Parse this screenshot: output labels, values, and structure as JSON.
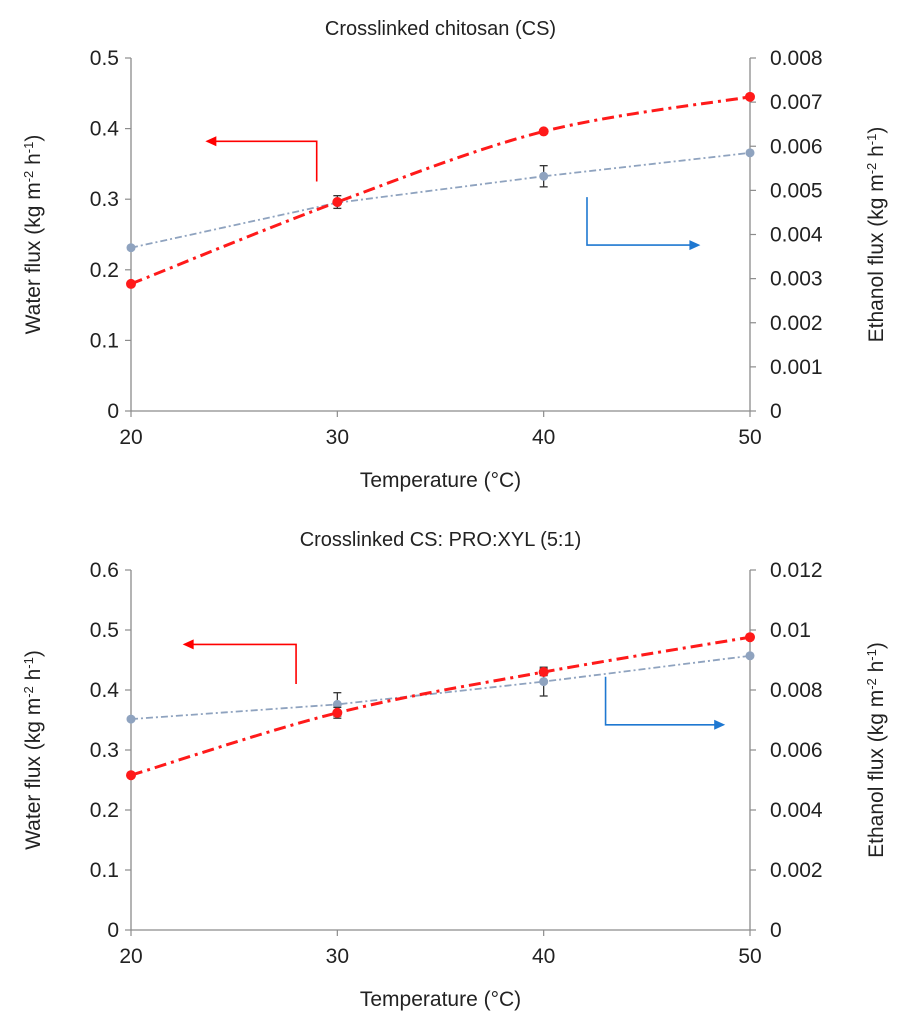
{
  "chart_data": [
    {
      "type": "line",
      "title": "Crosslinked chitosan (CS)",
      "xlabel": "Temperature (°C)",
      "ylabel_left": {
        "main": "Water  flux (kg m",
        "sup1": "-2",
        "mid": " h",
        "sup2": "-1",
        "end": ")"
      },
      "ylabel_right": {
        "main": "Ethanol flux (kg m",
        "sup1": "-2",
        "mid": " h",
        "sup2": "-1",
        "end": ")"
      },
      "x_ticks": [
        "20",
        "30",
        "40",
        "50"
      ],
      "y_left_ticks": [
        "0",
        "0.1",
        "0.2",
        "0.3",
        "0.4",
        "0.5"
      ],
      "y_right_ticks": [
        "0",
        "0.001",
        "0.002",
        "0.003",
        "0.004",
        "0.005",
        "0.006",
        "0.007",
        "0.008"
      ],
      "xlim": [
        20,
        50
      ],
      "ylim_left": [
        0,
        0.5
      ],
      "ylim_right": [
        0,
        0.008
      ],
      "grid": false,
      "legend": "none",
      "series": [
        {
          "axis": "left",
          "color": "#ff1a1a",
          "style": "dash-dot",
          "x": [
            20,
            30,
            40,
            50
          ],
          "y": [
            0.18,
            0.296,
            0.396,
            0.445
          ],
          "err": [
            0,
            0.009,
            0,
            0
          ]
        },
        {
          "axis": "right",
          "color": "#8fa3bf",
          "style": "dash-dot-thin",
          "x": [
            20,
            30,
            40,
            50
          ],
          "y": [
            0.0037,
            0.00472,
            0.00532,
            0.00585
          ],
          "err": [
            0,
            0,
            0.00024,
            0
          ]
        }
      ],
      "arrows": [
        {
          "color": "#ff0000",
          "direction": "left",
          "x_from": 29,
          "y_from_left": 0.325,
          "x_corner": 29,
          "y_corner_left": 0.382,
          "x_to": 23.7
        },
        {
          "color": "#1f78d1",
          "direction": "right",
          "x_from": 42.1,
          "y_from_left": 0.303,
          "x_corner": 42.1,
          "y_corner_left": 0.235,
          "x_to": 47.5
        }
      ]
    },
    {
      "type": "line",
      "title": "Crosslinked CS: PRO:XYL (5:1)",
      "xlabel": "Temperature (°C)",
      "ylabel_left": {
        "main": "Water flux  (kg m",
        "sup1": "-2",
        "mid": " h",
        "sup2": "-1",
        "end": ")"
      },
      "ylabel_right": {
        "main": "Ethanol flux (kg m",
        "sup1": "-2",
        "mid": " h",
        "sup2": "-1",
        "end": ")"
      },
      "x_ticks": [
        "20",
        "30",
        "40",
        "50"
      ],
      "y_left_ticks": [
        "0",
        "0.1",
        "0.2",
        "0.3",
        "0.4",
        "0.5",
        "0.6"
      ],
      "y_right_ticks": [
        "0",
        "0.002",
        "0.004",
        "0.006",
        "0.008",
        "0.01",
        "0.012"
      ],
      "xlim": [
        20,
        50
      ],
      "ylim_left": [
        0,
        0.6
      ],
      "ylim_right": [
        0,
        0.012
      ],
      "grid": false,
      "legend": "none",
      "series": [
        {
          "axis": "left",
          "color": "#ff1a1a",
          "style": "dash-dot",
          "x": [
            20,
            30,
            40,
            50
          ],
          "y": [
            0.258,
            0.362,
            0.43,
            0.488
          ],
          "err": [
            0,
            0.009,
            0.006,
            0
          ]
        },
        {
          "axis": "right",
          "color": "#8fa3bf",
          "style": "dash-dot-thin",
          "x": [
            20,
            30,
            40,
            50
          ],
          "y": [
            0.00703,
            0.00752,
            0.00828,
            0.00914
          ],
          "err": [
            0,
            0.00039,
            0.00048,
            0
          ]
        }
      ],
      "arrows": [
        {
          "color": "#ff0000",
          "direction": "left",
          "x_from": 28,
          "y_from_left": 0.41,
          "x_corner": 28,
          "y_corner_left": 0.476,
          "x_to": 22.6
        },
        {
          "color": "#1f78d1",
          "direction": "right",
          "x_from": 43,
          "y_from_left": 0.422,
          "x_corner": 43,
          "y_corner_left": 0.342,
          "x_to": 48.7
        }
      ]
    }
  ]
}
